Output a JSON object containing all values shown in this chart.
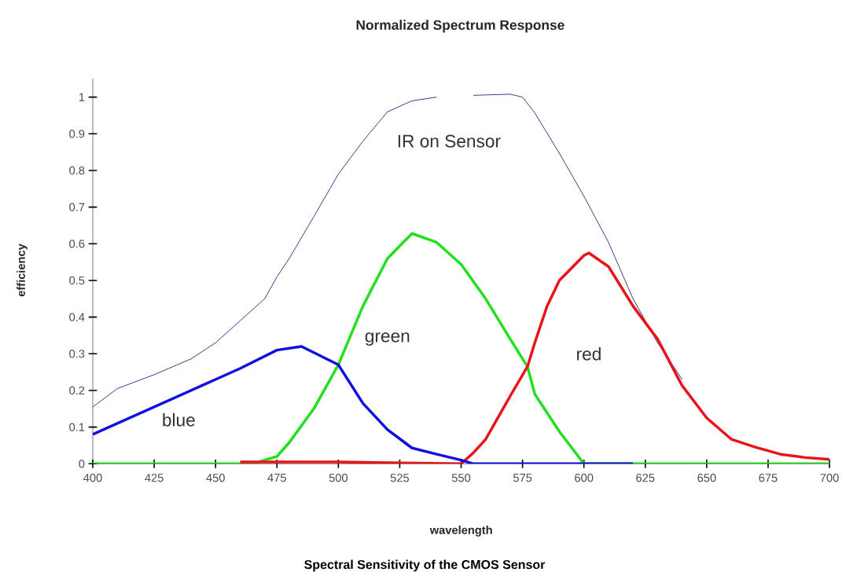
{
  "chart_data": {
    "type": "line",
    "title": "Normalized Spectrum Response",
    "xlabel": "wavelength",
    "ylabel": "efficiency",
    "annotations": [
      "Spectral Sensitivity of the CMOS Sensor"
    ],
    "xlim": [
      400,
      700
    ],
    "ylim": [
      0,
      1.05
    ],
    "xticks": [
      400,
      425,
      450,
      475,
      500,
      525,
      550,
      575,
      600,
      625,
      650,
      675,
      700
    ],
    "yticks": [
      0,
      0.1,
      0.2,
      0.3,
      0.4,
      0.5,
      0.6,
      0.7,
      0.8,
      0.9,
      1
    ],
    "series": [
      {
        "name": "IR on Sensor",
        "color": "#0a0a6e",
        "x": [
          400,
          410,
          425,
          440,
          450,
          460,
          470,
          475,
          480,
          490,
          500,
          510,
          520,
          530,
          540,
          545,
          555,
          570,
          575,
          580,
          590,
          600,
          610,
          620,
          630,
          640
        ],
        "values": [
          0.155,
          0.205,
          0.243,
          0.286,
          0.33,
          0.39,
          0.45,
          0.51,
          0.56,
          0.674,
          0.79,
          0.88,
          0.96,
          0.99,
          1.0,
          null,
          1.005,
          1.008,
          1.0,
          0.957,
          0.847,
          0.73,
          0.604,
          0.45,
          0.33,
          0.23
        ]
      },
      {
        "name": "green",
        "color": "#22e01e",
        "x": [
          400,
          465,
          470,
          475,
          480,
          490,
          500,
          510,
          520,
          530,
          540,
          550,
          560,
          570,
          577,
          580,
          590,
          600,
          650,
          700
        ],
        "values": [
          0,
          0,
          0.01,
          0.02,
          0.058,
          0.15,
          0.27,
          0.43,
          0.56,
          0.628,
          0.604,
          0.544,
          0.45,
          0.34,
          0.265,
          0.19,
          0.088,
          0,
          0,
          0
        ]
      },
      {
        "name": "red",
        "color": "#e8141a",
        "x": [
          460,
          500,
          550,
          555,
          560,
          570,
          577,
          580,
          585,
          590,
          600,
          602,
          610,
          620,
          630,
          640,
          650,
          660,
          670,
          680,
          690,
          700
        ],
        "values": [
          0.005,
          0.005,
          0,
          0.03,
          0.067,
          0.185,
          0.265,
          0.33,
          0.43,
          0.5,
          0.568,
          0.575,
          0.538,
          0.43,
          0.34,
          0.213,
          0.125,
          0.067,
          0.045,
          0.026,
          0.017,
          0.012
        ]
      },
      {
        "name": "blue",
        "color": "#1010e0",
        "x": [
          400,
          425,
          450,
          460,
          475,
          485,
          500,
          510,
          520,
          530,
          540,
          550,
          555,
          620
        ],
        "values": [
          0.08,
          0.155,
          0.23,
          0.26,
          0.31,
          0.32,
          0.27,
          0.165,
          0.093,
          0.043,
          0.026,
          0.01,
          0,
          0
        ]
      }
    ]
  }
}
